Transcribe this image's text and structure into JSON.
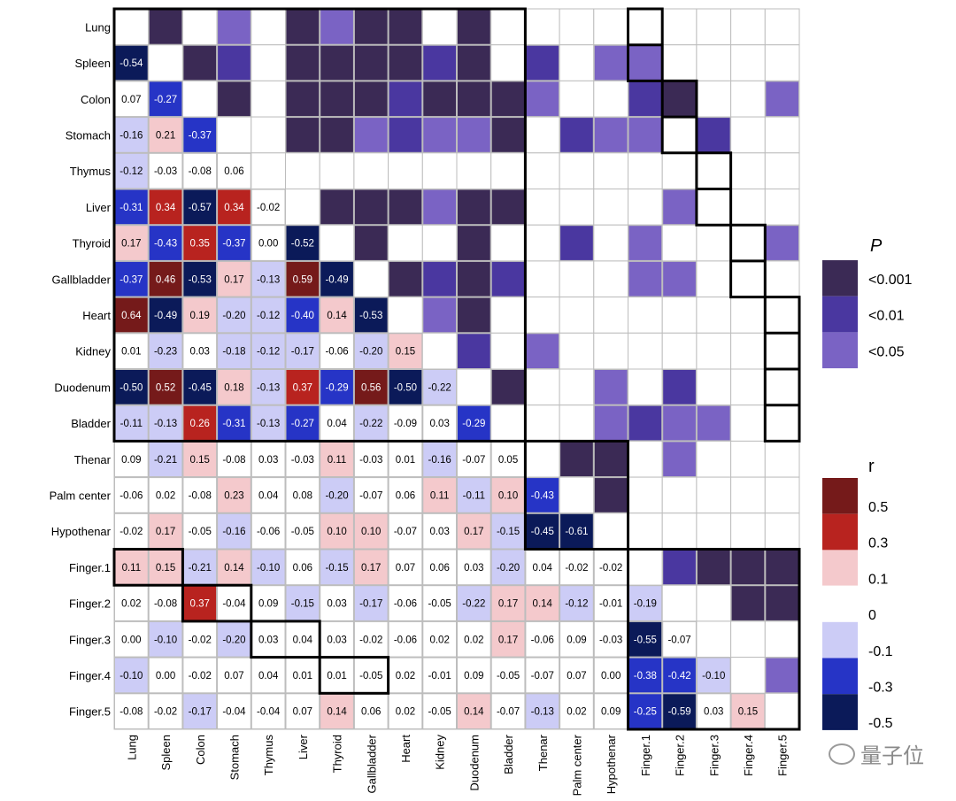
{
  "chart_data": {
    "type": "heatmap",
    "title": "",
    "labels": [
      "Lung",
      "Spleen",
      "Colon",
      "Stomach",
      "Thymus",
      "Liver",
      "Thyroid",
      "Gallbladder",
      "Heart",
      "Kidney",
      "Duodenum",
      "Bladder",
      "Thenar",
      "Palm center",
      "Hypothenar",
      "Finger.1",
      "Finger.2",
      "Finger.3",
      "Finger.4",
      "Finger.5"
    ],
    "r_lower": [
      [],
      [
        -0.54
      ],
      [
        0.07,
        -0.27
      ],
      [
        -0.16,
        0.21,
        -0.37
      ],
      [
        -0.12,
        -0.03,
        -0.08,
        0.06
      ],
      [
        -0.31,
        0.34,
        -0.57,
        0.34,
        -0.02
      ],
      [
        0.17,
        -0.43,
        0.35,
        -0.37,
        0.0,
        -0.52
      ],
      [
        -0.37,
        0.46,
        -0.53,
        0.17,
        -0.13,
        0.59,
        -0.49
      ],
      [
        0.64,
        -0.49,
        0.19,
        -0.2,
        -0.12,
        -0.4,
        0.14,
        -0.53
      ],
      [
        0.01,
        -0.23,
        0.03,
        -0.18,
        -0.12,
        -0.17,
        -0.06,
        -0.2,
        0.15
      ],
      [
        -0.5,
        0.52,
        -0.45,
        0.18,
        -0.13,
        0.37,
        -0.29,
        0.56,
        -0.5,
        -0.22
      ],
      [
        -0.11,
        -0.13,
        0.26,
        -0.31,
        -0.13,
        -0.27,
        0.04,
        -0.22,
        -0.09,
        0.03,
        -0.29
      ],
      [
        0.09,
        -0.21,
        0.15,
        -0.08,
        0.03,
        -0.03,
        0.11,
        -0.03,
        0.01,
        -0.16,
        -0.07,
        0.05
      ],
      [
        -0.06,
        0.02,
        -0.08,
        0.23,
        0.04,
        0.08,
        -0.2,
        -0.07,
        0.06,
        0.11,
        -0.11,
        0.1,
        -0.43
      ],
      [
        -0.02,
        0.17,
        -0.05,
        -0.16,
        -0.06,
        -0.05,
        0.1,
        0.1,
        -0.07,
        0.03,
        0.17,
        -0.15,
        -0.45,
        -0.61
      ],
      [
        0.11,
        0.15,
        -0.21,
        0.14,
        -0.1,
        0.06,
        -0.15,
        0.17,
        0.07,
        0.06,
        0.03,
        -0.2,
        0.04,
        -0.02,
        -0.02
      ],
      [
        0.02,
        -0.08,
        0.37,
        -0.04,
        0.09,
        -0.15,
        0.03,
        -0.17,
        -0.06,
        -0.05,
        -0.22,
        0.17,
        0.14,
        -0.12,
        -0.01,
        -0.19
      ],
      [
        0.0,
        -0.1,
        -0.02,
        -0.2,
        0.03,
        0.04,
        0.03,
        -0.02,
        -0.06,
        0.02,
        0.02,
        0.17,
        -0.06,
        0.09,
        -0.03,
        -0.55,
        -0.07
      ],
      [
        -0.1,
        0.0,
        -0.02,
        0.07,
        0.04,
        0.01,
        0.01,
        -0.05,
        0.02,
        -0.01,
        0.09,
        -0.05,
        -0.07,
        0.07,
        0.0,
        -0.38,
        -0.42,
        -0.1
      ],
      [
        -0.08,
        -0.02,
        -0.17,
        -0.04,
        -0.04,
        0.07,
        0.14,
        0.06,
        0.02,
        -0.05,
        0.14,
        -0.07,
        -0.13,
        0.02,
        0.09,
        -0.25,
        -0.59,
        0.03,
        0.15
      ]
    ],
    "p_upper": [
      {
        "row": "Lung",
        "cols": [
          "Spleen",
          "Stomach",
          "Liver",
          "Thyroid",
          "Gallbladder",
          "Heart",
          "Duodenum"
        ],
        "levels": [
          1,
          3,
          1,
          3,
          1,
          1,
          1
        ]
      },
      {
        "row": "Spleen",
        "cols": [
          "Colon",
          "Stomach",
          "Liver",
          "Thyroid",
          "Gallbladder",
          "Heart",
          "Kidney",
          "Duodenum",
          "Thenar",
          "Hypothenar",
          "Finger.1"
        ],
        "levels": [
          1,
          2,
          1,
          1,
          1,
          1,
          2,
          1,
          2,
          3,
          3
        ]
      },
      {
        "row": "Colon",
        "cols": [
          "Stomach",
          "Liver",
          "Thyroid",
          "Gallbladder",
          "Heart",
          "Kidney",
          "Duodenum",
          "Bladder",
          "Thenar",
          "Finger.1",
          "Finger.2",
          "Finger.5"
        ],
        "levels": [
          1,
          1,
          1,
          1,
          2,
          1,
          1,
          1,
          3,
          2,
          1,
          3
        ]
      },
      {
        "row": "Stomach",
        "cols": [
          "Liver",
          "Thyroid",
          "Gallbladder",
          "Heart",
          "Kidney",
          "Duodenum",
          "Bladder",
          "Palm center",
          "Hypothenar",
          "Finger.1",
          "Finger.3"
        ],
        "levels": [
          1,
          1,
          3,
          2,
          3,
          3,
          1,
          2,
          3,
          3,
          2
        ]
      },
      {
        "row": "Liver",
        "cols": [
          "Thyroid",
          "Gallbladder",
          "Heart",
          "Kidney",
          "Duodenum",
          "Bladder",
          "Finger.2"
        ],
        "levels": [
          1,
          1,
          1,
          3,
          1,
          1,
          3
        ]
      },
      {
        "row": "Thyroid",
        "cols": [
          "Gallbladder",
          "Duodenum",
          "Palm center",
          "Finger.1",
          "Finger.5"
        ],
        "levels": [
          1,
          1,
          2,
          3,
          3
        ]
      },
      {
        "row": "Gallbladder",
        "cols": [
          "Heart",
          "Kidney",
          "Duodenum",
          "Bladder",
          "Finger.1",
          "Finger.2"
        ],
        "levels": [
          1,
          2,
          1,
          2,
          3,
          3
        ]
      },
      {
        "row": "Heart",
        "cols": [
          "Kidney",
          "Duodenum"
        ],
        "levels": [
          3,
          1
        ]
      },
      {
        "row": "Kidney",
        "cols": [
          "Duodenum",
          "Thenar"
        ],
        "levels": [
          2,
          3
        ]
      },
      {
        "row": "Duodenum",
        "cols": [
          "Bladder",
          "Hypothenar",
          "Finger.2"
        ],
        "levels": [
          1,
          3,
          2
        ]
      },
      {
        "row": "Bladder",
        "cols": [
          "Hypothenar",
          "Finger.1",
          "Finger.2",
          "Finger.3"
        ],
        "levels": [
          3,
          2,
          3,
          3
        ]
      },
      {
        "row": "Thenar",
        "cols": [
          "Palm center",
          "Hypothenar",
          "Finger.2"
        ],
        "levels": [
          1,
          1,
          3
        ]
      },
      {
        "row": "Palm center",
        "cols": [
          "Hypothenar"
        ],
        "levels": [
          1
        ]
      },
      {
        "row": "Finger.1",
        "cols": [
          "Finger.2",
          "Finger.3",
          "Finger.4",
          "Finger.5"
        ],
        "levels": [
          2,
          1,
          1,
          1
        ]
      },
      {
        "row": "Finger.2",
        "cols": [
          "Finger.4",
          "Finger.5"
        ],
        "levels": [
          1,
          1
        ]
      },
      {
        "row": "Finger.4",
        "cols": [
          "Finger.5"
        ],
        "levels": [
          3
        ]
      }
    ],
    "legend_p": {
      "title": "P",
      "items": [
        {
          "label": "<0.001",
          "color": "#3b2a55"
        },
        {
          "label": "<0.01",
          "color": "#4a37a0"
        },
        {
          "label": "<0.05",
          "color": "#7a63c4"
        }
      ]
    },
    "legend_r": {
      "title": "r",
      "items": [
        {
          "label": "0.5",
          "color": "#751a1a"
        },
        {
          "label": "0.3",
          "color": "#b8231f"
        },
        {
          "label": "0.1",
          "color": "#f4c9cc"
        },
        {
          "label": "0",
          "color": "#ffffff"
        },
        {
          "label": "-0.1",
          "color": "#ccccf6"
        },
        {
          "label": "-0.3",
          "color": "#2634c6"
        },
        {
          "label": "-0.5",
          "color": "#0b1a59"
        }
      ]
    }
  },
  "watermark": "量子位"
}
